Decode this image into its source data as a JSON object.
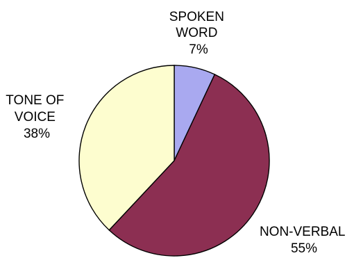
{
  "chart_data": {
    "type": "pie",
    "slices": [
      {
        "label_lines": [
          "SPOKEN",
          "WORD"
        ],
        "value_label": "7%",
        "value": 7,
        "color": "#a9a9f0"
      },
      {
        "label_lines": [
          "NON-VERBAL"
        ],
        "value_label": "55%",
        "value": 55,
        "color": "#8c2f52"
      },
      {
        "label_lines": [
          "TONE OF",
          "VOICE"
        ],
        "value_label": "38%",
        "value": 38,
        "color": "#fdfdcf"
      }
    ]
  }
}
